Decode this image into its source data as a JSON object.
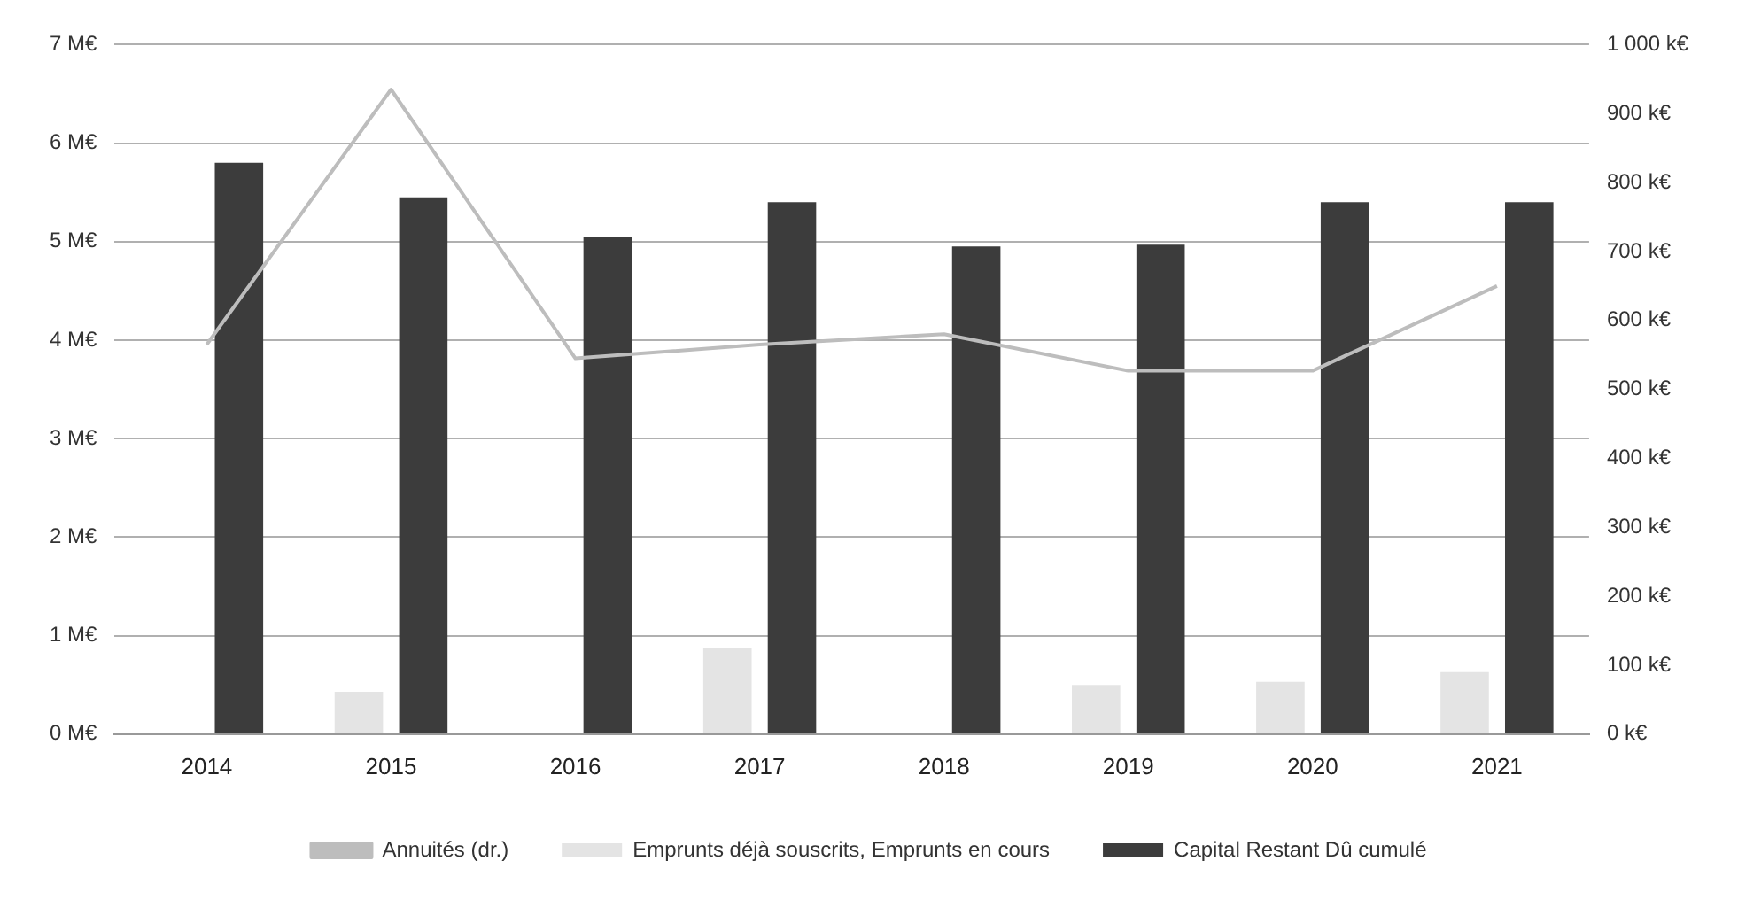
{
  "chart_data": {
    "type": "bar",
    "categories": [
      "2014",
      "2015",
      "2016",
      "2017",
      "2018",
      "2019",
      "2020",
      "2021"
    ],
    "series": [
      {
        "name": "Emprunts déjà souscrits, Emprunts en cours",
        "color": "#e4e4e4",
        "values": [
          0,
          0.43,
          0,
          0.87,
          0,
          0.5,
          0.53,
          0.63
        ]
      },
      {
        "name": "Capital Restant Dû cumulé",
        "color": "#3c3c3c",
        "values": [
          5.8,
          5.45,
          5.05,
          5.4,
          4.95,
          4.97,
          5.4,
          5.4
        ]
      },
      {
        "name": "Annuités (dr.)",
        "type": "line",
        "axis": "y2",
        "color": "#bdbdbd",
        "values": [
          565,
          935,
          545,
          565,
          580,
          527,
          527,
          650
        ]
      }
    ],
    "ylim": [
      0,
      7
    ],
    "yticks": [
      {
        "value": 0,
        "label": "0 M€"
      },
      {
        "value": 1,
        "label": "1 M€"
      },
      {
        "value": 2,
        "label": "2 M€"
      },
      {
        "value": 3,
        "label": "3 M€"
      },
      {
        "value": 4,
        "label": "4 M€"
      },
      {
        "value": 5,
        "label": "5 M€"
      },
      {
        "value": 6,
        "label": "6 M€"
      },
      {
        "value": 7,
        "label": "7 M€"
      }
    ],
    "y2lim": [
      0,
      1000
    ],
    "y2ticks": [
      {
        "value": 0,
        "label": "0 k€"
      },
      {
        "value": 100,
        "label": "100 k€"
      },
      {
        "value": 200,
        "label": "200 k€"
      },
      {
        "value": 300,
        "label": "300 k€"
      },
      {
        "value": 400,
        "label": "400 k€"
      },
      {
        "value": 500,
        "label": "500 k€"
      },
      {
        "value": 600,
        "label": "600 k€"
      },
      {
        "value": 700,
        "label": "700 k€"
      },
      {
        "value": 800,
        "label": "800 k€"
      },
      {
        "value": 900,
        "label": "900 k€"
      },
      {
        "value": 1000,
        "label": "1 000 k€"
      }
    ],
    "grid": "y",
    "legend": "bottom",
    "marker": "none"
  }
}
